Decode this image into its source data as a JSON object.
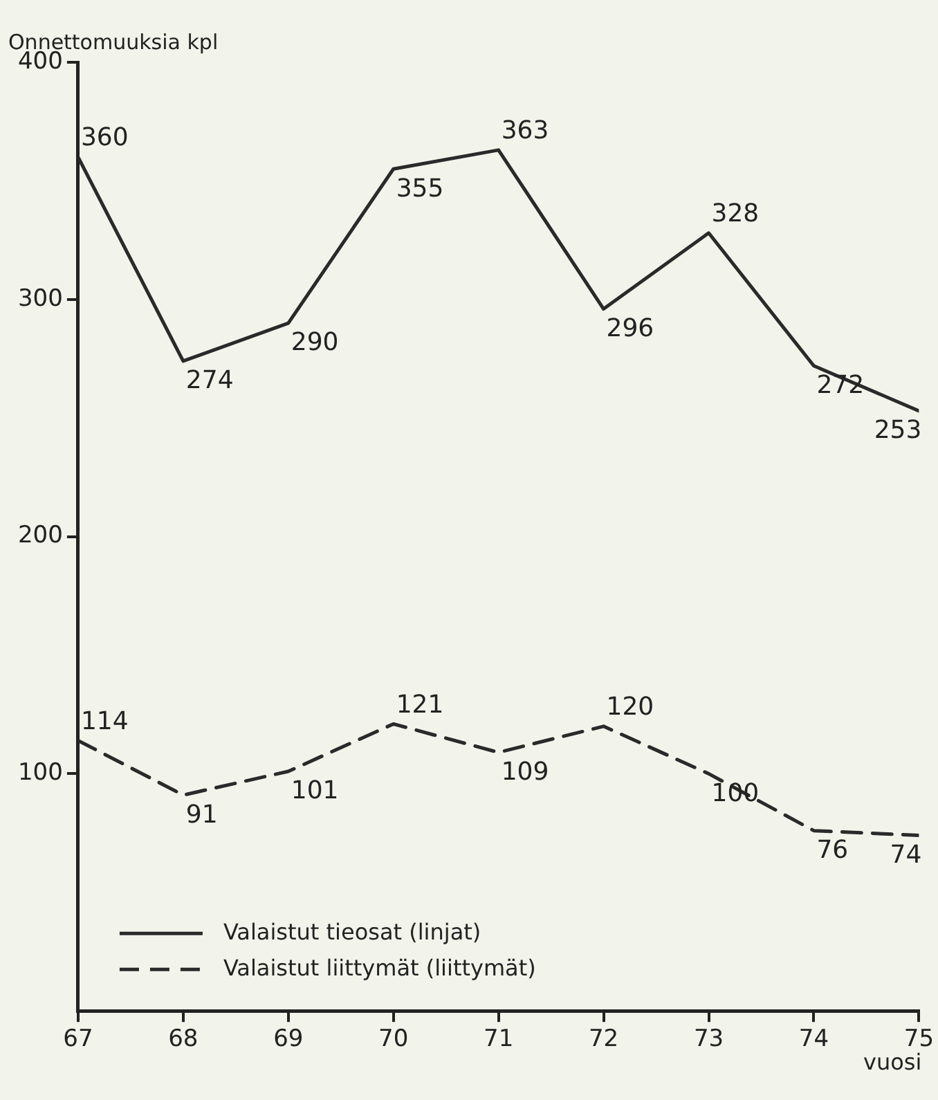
{
  "chart_data": {
    "type": "line",
    "xlabel": "vuosi",
    "ylabel": "Onnettomuuksia kpl",
    "x": [
      67,
      68,
      69,
      70,
      71,
      72,
      73,
      74,
      75
    ],
    "series": [
      {
        "name": "Valaistut tieosat (linjat)",
        "color": "#2a2a2a",
        "line_style": "solid",
        "values": [
          360,
          274,
          290,
          355,
          363,
          296,
          328,
          272,
          253
        ]
      },
      {
        "name": "Valaistut liittymät (liittymät)",
        "color": "#2a2a2a",
        "line_style": "dashed",
        "values": [
          114,
          91,
          101,
          121,
          109,
          120,
          100,
          76,
          74
        ]
      }
    ],
    "xlim": [
      67,
      75
    ],
    "xticks": [
      67,
      68,
      69,
      70,
      71,
      72,
      73,
      74,
      75
    ],
    "ylim": [
      0,
      400
    ],
    "yticks": [
      100,
      200,
      300,
      400
    ],
    "grid": false,
    "legend": "bottom left",
    "marker": "none",
    "data_labels": true
  }
}
